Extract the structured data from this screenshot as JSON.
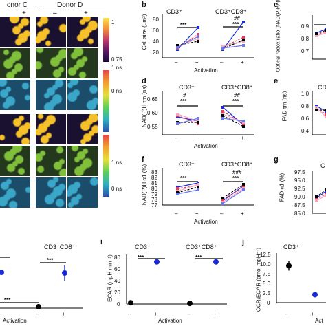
{
  "micrograph": {
    "donor_c_header": "onor C",
    "donor_d_header": "Donor D",
    "col_minus": "–",
    "col_plus": "+",
    "cbar_top_ticks": [
      "1",
      "0.75"
    ],
    "cbar_mid_ticks": [
      "1 ns",
      "0 ns"
    ],
    "cbar_bot_ticks": [
      "1 ns",
      "0 ns"
    ],
    "colors": {
      "cells_hot": "#f5c028",
      "cells_green": "#7fbf3a",
      "bg_dark": "#1a1030",
      "bg_teal": "#1b4d6b"
    }
  },
  "panels": {
    "b": {
      "label": "b",
      "title_left": "CD3⁺",
      "title_right": "CD3⁺CD8⁺",
      "ylabel": "Cell size (μm²)",
      "yticks": [
        "20",
        "40",
        "60",
        "80"
      ],
      "sig_top_left": "",
      "sig_bot_left": "***",
      "sig_top_right": "##",
      "sig_bot_right": "***",
      "xlabel": "Activation"
    },
    "c": {
      "label": "c",
      "ylabel": "Optical redox ratio (NAD(P)H/ (NAD(P)H+FAD))",
      "yticks": [
        "0.9",
        "0.8",
        "0.7"
      ]
    },
    "d": {
      "label": "d",
      "title_left": "CD3⁺",
      "title_right": "CD3⁺CD8⁺",
      "ylabel": "NAD(P)H τm (ns)",
      "yticks": [
        "0.65",
        "0.60",
        "0.55"
      ],
      "sig_top_left": "#",
      "sig_bot_left": "***",
      "sig_top_right": "##",
      "sig_bot_right": "***",
      "xlabel": "Activation"
    },
    "e": {
      "label": "e",
      "title": "CD",
      "ylabel": "FAD τm (ns)",
      "yticks": [
        "1.0",
        "0.8",
        "0.6",
        "0.4"
      ]
    },
    "f": {
      "label": "f",
      "title_left": "CD3⁺",
      "title_right": "CD3⁺CD8⁺",
      "ylabel": "NAD(P)H α1 (%)",
      "yticks": [
        "83",
        "82",
        "81",
        "80",
        "79",
        "78",
        "77"
      ],
      "sig_top_left": "",
      "sig_bot_left": "***",
      "sig_top_right": "###",
      "sig_bot_right": "***",
      "xlabel": "Activation"
    },
    "g": {
      "label": "g",
      "title": "C",
      "ylabel": "FAD α1 (%)",
      "yticks": [
        "97.5",
        "95.0",
        "92.5",
        "90.0",
        "87.5",
        "85.0"
      ]
    },
    "h": {
      "title_right": "CD3⁺CD8⁺",
      "sig_top": "***",
      "sig_right": "***",
      "sig_bot": "***",
      "xlabel": "Activation"
    },
    "i": {
      "label": "i",
      "title_left": "CD3⁺",
      "title_right": "CD3⁺CD8⁺",
      "ylabel": "ECAR (mpH min⁻¹)",
      "yticks": [
        "80",
        "60",
        "40",
        "20",
        "0"
      ],
      "sig_left": "***",
      "sig_right": "***",
      "xlabel": "Activation"
    },
    "j": {
      "label": "j",
      "title": "CD3⁺",
      "ylabel": "OCR/ECAR (pmol mpH⁻¹)",
      "yticks": [
        "12.5",
        "10.0",
        "7.5",
        "5.0",
        "2.5",
        "0"
      ],
      "xlabel": "Act"
    }
  },
  "tick_minus": "–",
  "tick_plus": "+",
  "chart_data": [
    {
      "type": "scatter",
      "panel": "i",
      "categories": [
        "– CD3⁺",
        "+ CD3⁺",
        "– CD3⁺CD8⁺",
        "+ CD3⁺CD8⁺"
      ],
      "values": [
        2,
        68,
        1,
        68
      ],
      "ylim": [
        0,
        80
      ],
      "colors": [
        "#000000",
        "#1a2bd6",
        "#000000",
        "#1a2bd6"
      ]
    },
    {
      "type": "scatter",
      "panel": "j",
      "categories": [
        "–",
        "+"
      ],
      "values": [
        9.3,
        2.0
      ],
      "ylim": [
        0,
        12.5
      ],
      "colors": [
        "#000000",
        "#1a2bd6"
      ]
    }
  ]
}
